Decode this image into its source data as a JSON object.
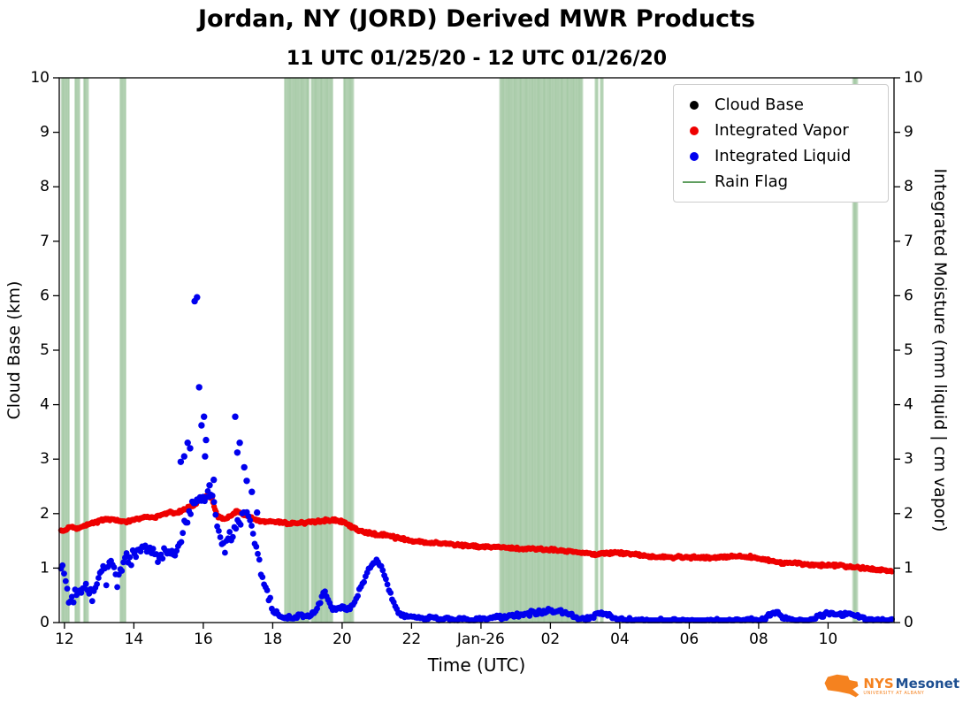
{
  "figure": {
    "title": "Jordan, NY (JORD) Derived MWR Products",
    "subtitle": "11 UTC 01/25/20 - 12 UTC 01/26/20",
    "xlabel": "Time (UTC)",
    "ylabel_left": "Cloud Base (km)",
    "ylabel_right": "Integrated Moisture (mm liquid | cm vapor)"
  },
  "legend": {
    "items": [
      {
        "label": "Cloud Base",
        "marker": "dot",
        "color": "#000000"
      },
      {
        "label": "Integrated Vapor",
        "marker": "dot",
        "color": "#ee0000"
      },
      {
        "label": "Integrated Liquid",
        "marker": "dot",
        "color": "#0000ee"
      },
      {
        "label": "Rain Flag",
        "marker": "line",
        "color": "#5f9e5f"
      }
    ]
  },
  "logo": {
    "nys": "NYS",
    "mesonet": "Mesonet",
    "tagline": "UNIVERSITY AT ALBANY"
  },
  "chart_data": {
    "type": "scatter",
    "title": "Jordan, NY (JORD) Derived MWR Products",
    "subtitle": "11 UTC 01/25/20 - 12 UTC 01/26/20",
    "xlabel": "Time (UTC)",
    "x_axis": {
      "range": [
        11.85,
        35.9
      ],
      "note": "hours since 00 UTC 01/25/20; 24+ = 01/26",
      "ticks": [
        {
          "v": 12,
          "label": "12"
        },
        {
          "v": 14,
          "label": "14"
        },
        {
          "v": 16,
          "label": "16"
        },
        {
          "v": 18,
          "label": "18"
        },
        {
          "v": 20,
          "label": "20"
        },
        {
          "v": 22,
          "label": "22"
        },
        {
          "v": 24,
          "label": "Jan-26"
        },
        {
          "v": 26,
          "label": "02"
        },
        {
          "v": 28,
          "label": "04"
        },
        {
          "v": 30,
          "label": "06"
        },
        {
          "v": 32,
          "label": "08"
        },
        {
          "v": 34,
          "label": "10"
        }
      ]
    },
    "y_left": {
      "label": "Cloud Base (km)",
      "range": [
        0,
        10
      ],
      "ticks": [
        0,
        1,
        2,
        3,
        4,
        5,
        6,
        7,
        8,
        9,
        10
      ]
    },
    "y_right": {
      "label": "Integrated Moisture (mm liquid | cm vapor)",
      "range": [
        0,
        10
      ],
      "ticks": [
        0,
        1,
        2,
        3,
        4,
        5,
        6,
        7,
        8,
        9,
        10
      ]
    },
    "rain_flag": {
      "label": "Rain Flag",
      "color": "#3c8c3c",
      "intervals": [
        [
          11.92,
          12.13
        ],
        [
          12.31,
          12.44
        ],
        [
          12.56,
          12.69
        ],
        [
          13.61,
          13.76
        ],
        [
          18.35,
          19.05
        ],
        [
          19.12,
          19.75
        ],
        [
          20.05,
          20.35
        ],
        [
          24.55,
          26.95
        ],
        [
          27.3,
          27.38
        ],
        [
          27.45,
          27.52
        ],
        [
          34.72,
          34.85
        ]
      ]
    },
    "series": [
      {
        "name": "Cloud Base",
        "color": "#000000",
        "axis": "left",
        "marker": "dot",
        "points": []
      },
      {
        "name": "Integrated Vapor",
        "color": "#ee0000",
        "axis": "right",
        "marker": "dot",
        "step": 0.03,
        "radius": 3.2,
        "jitter": 0.03,
        "points": [
          [
            11.9,
            1.68
          ],
          [
            12.0,
            1.7
          ],
          [
            12.2,
            1.76
          ],
          [
            12.4,
            1.72
          ],
          [
            12.6,
            1.8
          ],
          [
            12.8,
            1.82
          ],
          [
            13.0,
            1.86
          ],
          [
            13.2,
            1.9
          ],
          [
            13.5,
            1.88
          ],
          [
            13.8,
            1.85
          ],
          [
            14.0,
            1.88
          ],
          [
            14.2,
            1.92
          ],
          [
            14.4,
            1.95
          ],
          [
            14.6,
            1.92
          ],
          [
            14.8,
            1.98
          ],
          [
            15.0,
            2.02
          ],
          [
            15.2,
            2.0
          ],
          [
            15.4,
            2.06
          ],
          [
            15.6,
            2.12
          ],
          [
            15.8,
            2.2
          ],
          [
            15.95,
            2.28
          ],
          [
            16.1,
            2.33
          ],
          [
            16.25,
            2.28
          ],
          [
            16.4,
            1.96
          ],
          [
            16.6,
            1.9
          ],
          [
            16.8,
            1.96
          ],
          [
            16.95,
            2.05
          ],
          [
            17.1,
            2.0
          ],
          [
            17.3,
            1.95
          ],
          [
            17.5,
            1.88
          ],
          [
            17.7,
            1.86
          ],
          [
            18.0,
            1.85
          ],
          [
            18.5,
            1.82
          ],
          [
            19.0,
            1.84
          ],
          [
            19.5,
            1.87
          ],
          [
            19.8,
            1.88
          ],
          [
            20.0,
            1.85
          ],
          [
            20.3,
            1.75
          ],
          [
            20.6,
            1.66
          ],
          [
            21.0,
            1.62
          ],
          [
            21.3,
            1.6
          ],
          [
            21.6,
            1.55
          ],
          [
            22.0,
            1.5
          ],
          [
            22.5,
            1.47
          ],
          [
            23.0,
            1.45
          ],
          [
            23.5,
            1.42
          ],
          [
            24.0,
            1.4
          ],
          [
            24.5,
            1.38
          ],
          [
            25.0,
            1.36
          ],
          [
            25.5,
            1.36
          ],
          [
            26.0,
            1.34
          ],
          [
            26.5,
            1.31
          ],
          [
            27.0,
            1.28
          ],
          [
            27.3,
            1.24
          ],
          [
            27.6,
            1.28
          ],
          [
            28.0,
            1.28
          ],
          [
            28.5,
            1.25
          ],
          [
            29.0,
            1.21
          ],
          [
            29.5,
            1.2
          ],
          [
            30.0,
            1.2
          ],
          [
            30.5,
            1.19
          ],
          [
            31.0,
            1.2
          ],
          [
            31.5,
            1.22
          ],
          [
            31.8,
            1.2
          ],
          [
            32.2,
            1.15
          ],
          [
            32.6,
            1.1
          ],
          [
            33.0,
            1.1
          ],
          [
            33.4,
            1.07
          ],
          [
            33.8,
            1.05
          ],
          [
            34.2,
            1.05
          ],
          [
            34.6,
            1.03
          ],
          [
            35.0,
            1.0
          ],
          [
            35.4,
            0.98
          ],
          [
            35.85,
            0.95
          ]
        ]
      },
      {
        "name": "Integrated Liquid",
        "color": "#0000ee",
        "axis": "right",
        "marker": "dot",
        "step": 0.045,
        "radius": 3.4,
        "jitter": 0.05,
        "jitter_early": 0.17,
        "jitter_split": 18.2,
        "clamp_min": 0.04,
        "points": [
          [
            11.9,
            1.0
          ],
          [
            12.0,
            0.85
          ],
          [
            12.05,
            0.7
          ],
          [
            12.1,
            0.55
          ],
          [
            12.2,
            0.45
          ],
          [
            12.3,
            0.5
          ],
          [
            12.4,
            0.42
          ],
          [
            12.5,
            0.55
          ],
          [
            12.6,
            0.72
          ],
          [
            12.7,
            0.6
          ],
          [
            12.8,
            0.48
          ],
          [
            12.9,
            0.65
          ],
          [
            13.0,
            0.85
          ],
          [
            13.1,
            1.0
          ],
          [
            13.2,
            0.8
          ],
          [
            13.3,
            1.2
          ],
          [
            13.4,
            1.05
          ],
          [
            13.5,
            0.62
          ],
          [
            13.6,
            0.95
          ],
          [
            13.7,
            1.15
          ],
          [
            13.8,
            1.25
          ],
          [
            13.9,
            1.1
          ],
          [
            14.0,
            1.3
          ],
          [
            14.1,
            1.2
          ],
          [
            14.2,
            1.4
          ],
          [
            14.3,
            1.3
          ],
          [
            14.4,
            1.45
          ],
          [
            14.5,
            1.25
          ],
          [
            14.6,
            1.32
          ],
          [
            14.7,
            1.2
          ],
          [
            14.8,
            1.35
          ],
          [
            14.9,
            1.25
          ],
          [
            15.0,
            1.3
          ],
          [
            15.1,
            1.15
          ],
          [
            15.2,
            1.25
          ],
          [
            15.3,
            1.45
          ],
          [
            15.4,
            1.6
          ],
          [
            15.5,
            1.8
          ],
          [
            15.6,
            2.0
          ],
          [
            15.7,
            2.1
          ],
          [
            15.8,
            2.2
          ],
          [
            15.9,
            2.25
          ],
          [
            16.0,
            2.3
          ],
          [
            16.1,
            2.35
          ],
          [
            16.2,
            2.3
          ],
          [
            16.3,
            2.2
          ],
          [
            16.4,
            1.8
          ],
          [
            16.5,
            1.55
          ],
          [
            16.6,
            1.4
          ],
          [
            16.7,
            1.45
          ],
          [
            16.8,
            1.6
          ],
          [
            16.9,
            1.75
          ],
          [
            17.0,
            1.8
          ],
          [
            17.1,
            1.9
          ],
          [
            17.2,
            2.05
          ],
          [
            17.3,
            1.9
          ],
          [
            17.4,
            1.7
          ],
          [
            17.5,
            1.45
          ],
          [
            17.6,
            1.1
          ],
          [
            17.7,
            0.85
          ],
          [
            17.8,
            0.65
          ],
          [
            17.9,
            0.4
          ],
          [
            18.0,
            0.25
          ],
          [
            18.1,
            0.15
          ],
          [
            18.2,
            0.1
          ],
          [
            18.4,
            0.08
          ],
          [
            18.6,
            0.1
          ],
          [
            18.8,
            0.12
          ],
          [
            19.0,
            0.1
          ],
          [
            19.2,
            0.18
          ],
          [
            19.3,
            0.3
          ],
          [
            19.4,
            0.45
          ],
          [
            19.5,
            0.6
          ],
          [
            19.6,
            0.4
          ],
          [
            19.7,
            0.28
          ],
          [
            19.8,
            0.22
          ],
          [
            19.9,
            0.25
          ],
          [
            20.0,
            0.28
          ],
          [
            20.1,
            0.25
          ],
          [
            20.2,
            0.28
          ],
          [
            20.3,
            0.32
          ],
          [
            20.4,
            0.45
          ],
          [
            20.5,
            0.6
          ],
          [
            20.6,
            0.72
          ],
          [
            20.7,
            0.85
          ],
          [
            20.8,
            1.0
          ],
          [
            20.9,
            1.1
          ],
          [
            21.0,
            1.15
          ],
          [
            21.1,
            1.05
          ],
          [
            21.2,
            0.9
          ],
          [
            21.3,
            0.7
          ],
          [
            21.4,
            0.52
          ],
          [
            21.5,
            0.35
          ],
          [
            21.6,
            0.22
          ],
          [
            21.7,
            0.15
          ],
          [
            21.8,
            0.12
          ],
          [
            22.0,
            0.1
          ],
          [
            22.3,
            0.08
          ],
          [
            22.6,
            0.1
          ],
          [
            22.9,
            0.06
          ],
          [
            23.2,
            0.05
          ],
          [
            23.5,
            0.06
          ],
          [
            23.8,
            0.05
          ],
          [
            24.0,
            0.06
          ],
          [
            24.3,
            0.08
          ],
          [
            24.6,
            0.1
          ],
          [
            24.9,
            0.13
          ],
          [
            25.2,
            0.16
          ],
          [
            25.5,
            0.18
          ],
          [
            25.8,
            0.2
          ],
          [
            26.0,
            0.24
          ],
          [
            26.2,
            0.22
          ],
          [
            26.4,
            0.18
          ],
          [
            26.6,
            0.14
          ],
          [
            26.8,
            0.08
          ],
          [
            27.0,
            0.05
          ],
          [
            27.2,
            0.1
          ],
          [
            27.4,
            0.18
          ],
          [
            27.5,
            0.2
          ],
          [
            27.6,
            0.15
          ],
          [
            27.8,
            0.08
          ],
          [
            28.0,
            0.05
          ],
          [
            28.5,
            0.04
          ],
          [
            29.0,
            0.03
          ],
          [
            29.5,
            0.03
          ],
          [
            30.0,
            0.04
          ],
          [
            30.5,
            0.03
          ],
          [
            31.0,
            0.03
          ],
          [
            31.5,
            0.04
          ],
          [
            32.0,
            0.05
          ],
          [
            32.2,
            0.1
          ],
          [
            32.4,
            0.18
          ],
          [
            32.5,
            0.2
          ],
          [
            32.6,
            0.15
          ],
          [
            32.8,
            0.08
          ],
          [
            33.0,
            0.05
          ],
          [
            33.3,
            0.04
          ],
          [
            33.6,
            0.06
          ],
          [
            33.8,
            0.12
          ],
          [
            34.0,
            0.18
          ],
          [
            34.2,
            0.15
          ],
          [
            34.4,
            0.12
          ],
          [
            34.6,
            0.18
          ],
          [
            34.8,
            0.12
          ],
          [
            35.0,
            0.08
          ],
          [
            35.3,
            0.05
          ],
          [
            35.6,
            0.04
          ],
          [
            35.85,
            0.04
          ]
        ],
        "extra_points": [
          [
            15.35,
            2.95
          ],
          [
            15.45,
            3.05
          ],
          [
            15.55,
            3.3
          ],
          [
            15.62,
            3.2
          ],
          [
            15.75,
            5.9
          ],
          [
            15.82,
            5.97
          ],
          [
            15.88,
            4.32
          ],
          [
            15.95,
            3.62
          ],
          [
            16.02,
            3.78
          ],
          [
            16.05,
            3.05
          ],
          [
            16.08,
            3.35
          ],
          [
            16.18,
            2.52
          ],
          [
            16.3,
            2.62
          ],
          [
            16.92,
            3.78
          ],
          [
            16.98,
            3.12
          ],
          [
            17.05,
            3.3
          ],
          [
            17.18,
            2.85
          ],
          [
            17.25,
            2.6
          ],
          [
            17.4,
            2.4
          ],
          [
            17.55,
            2.02
          ]
        ]
      }
    ]
  }
}
